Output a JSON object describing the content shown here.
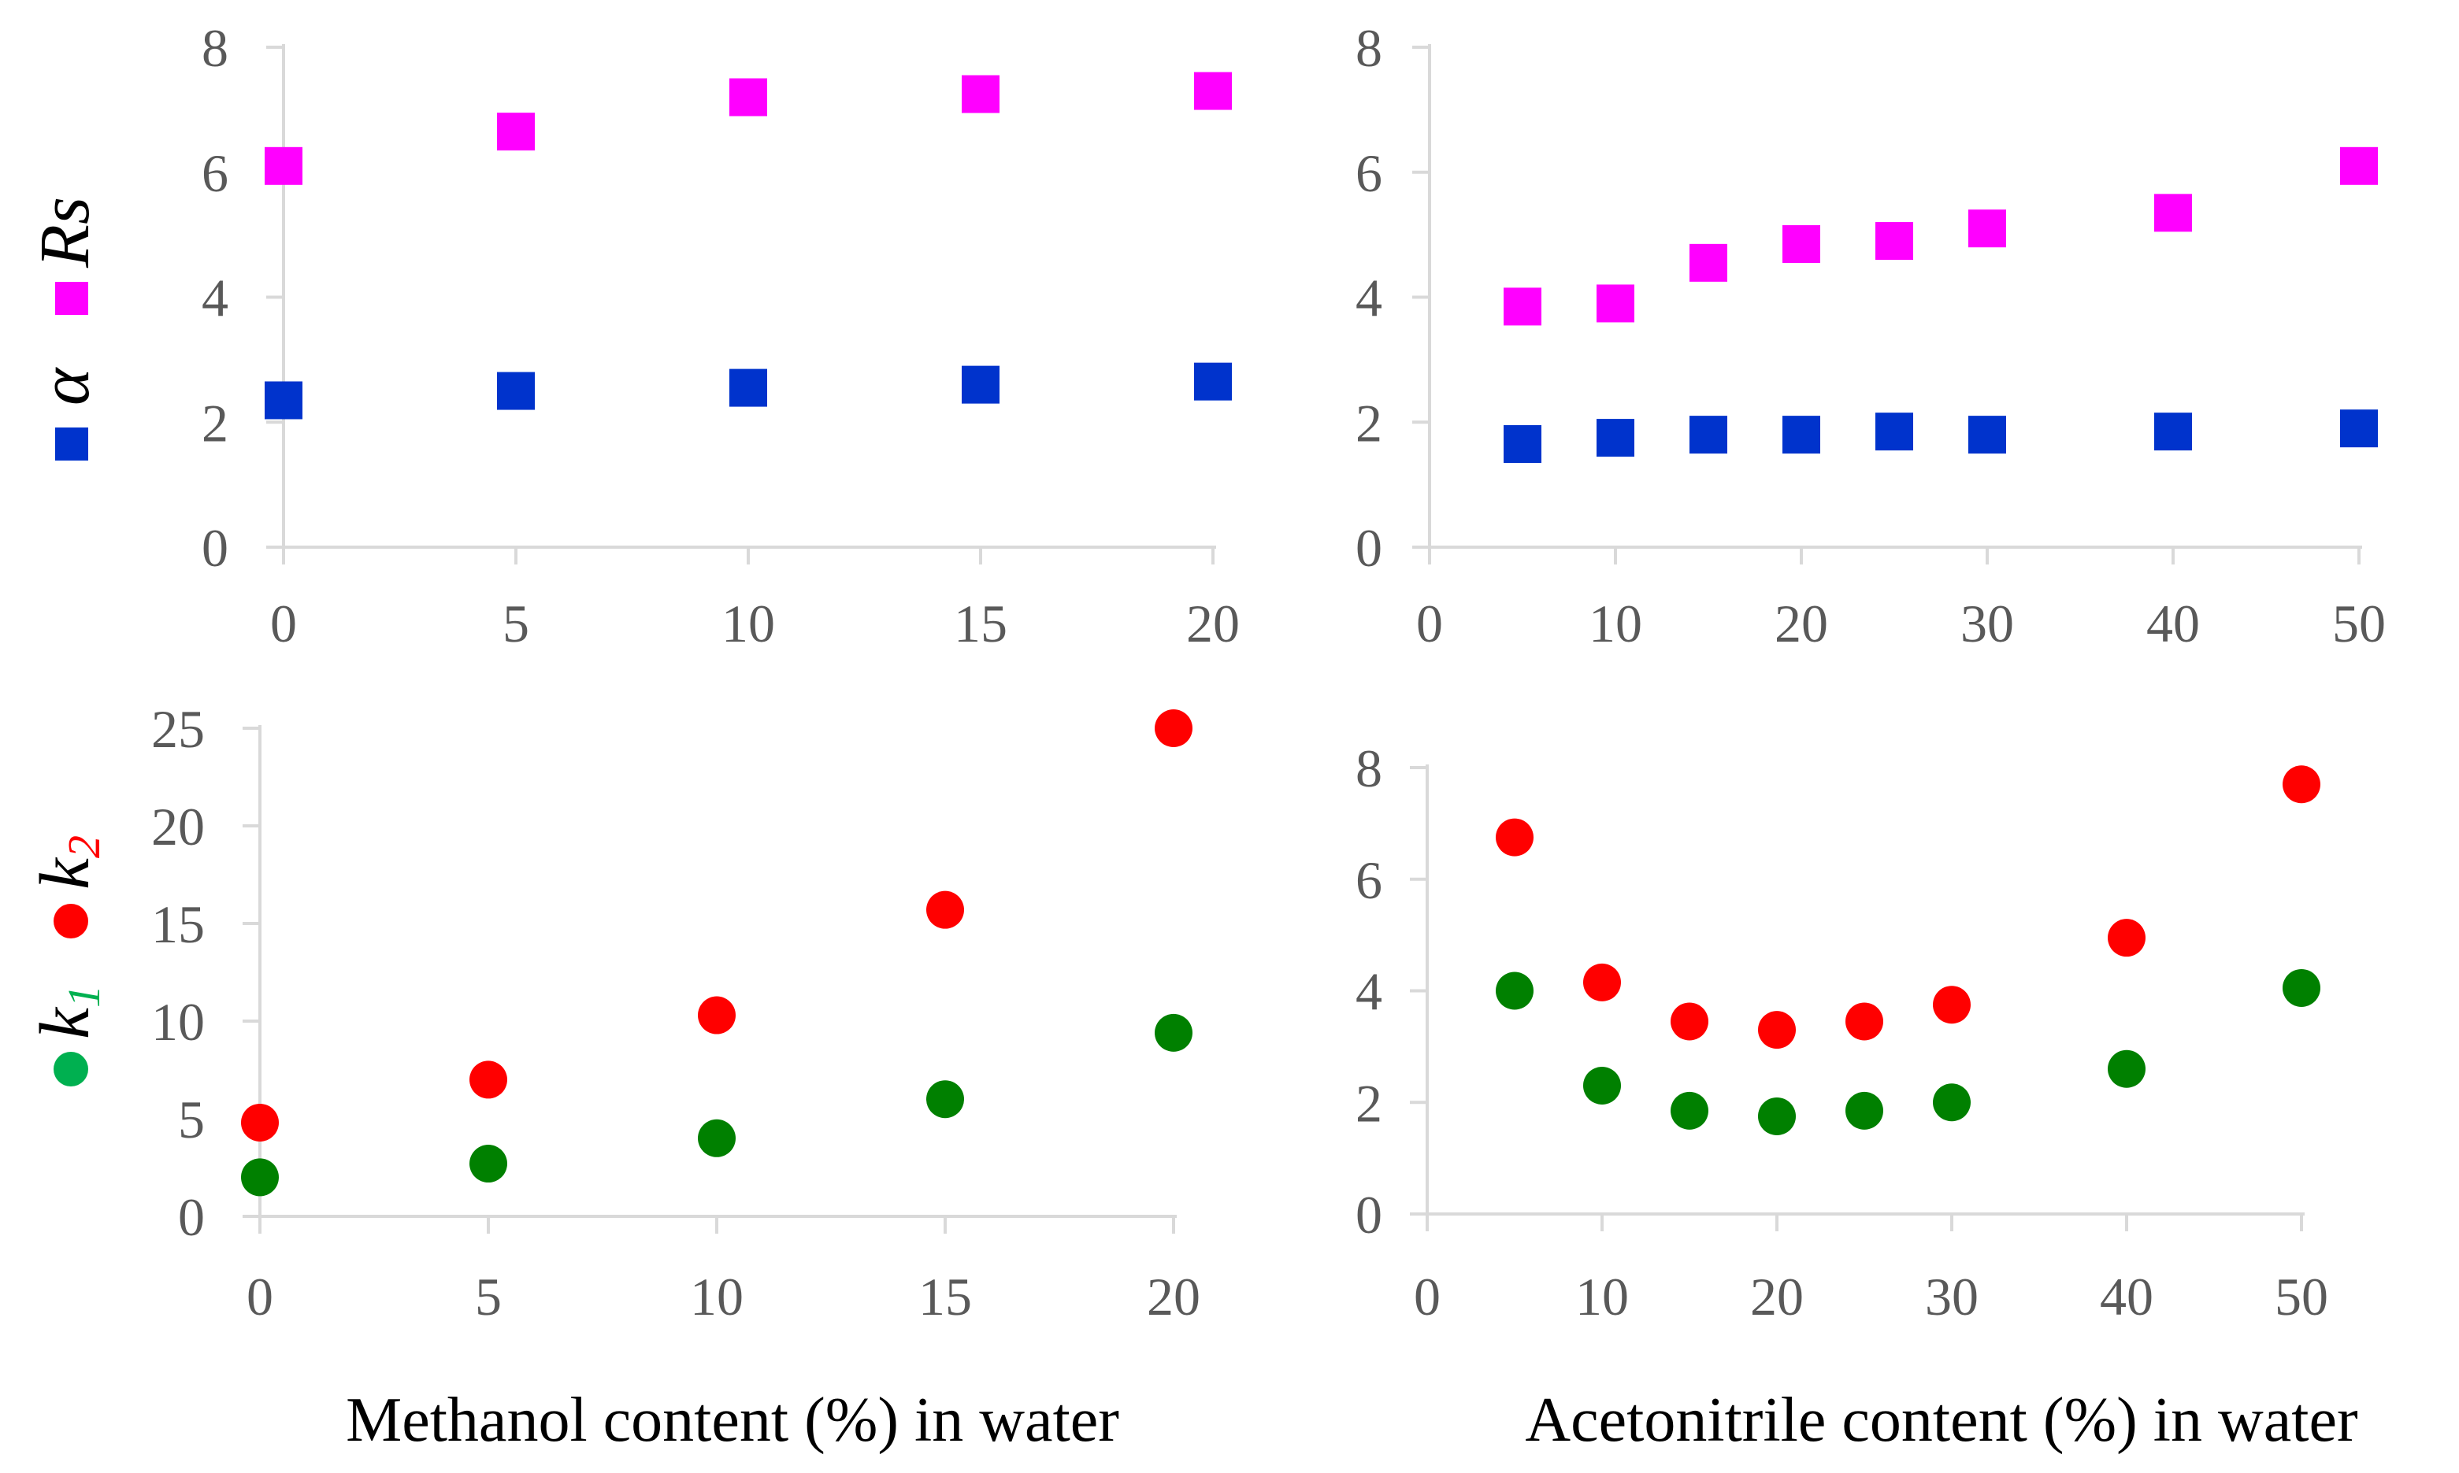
{
  "chart_data": [
    {
      "type": "scatter",
      "panel": "top-left",
      "xlim": [
        0,
        20
      ],
      "ylim": [
        0,
        8
      ],
      "xticks": [
        "0",
        "5",
        "10",
        "15",
        "20"
      ],
      "yticks": [
        "0",
        "2",
        "4",
        "6",
        "8"
      ],
      "series": [
        {
          "name": "Rs",
          "color": "#ff00ff",
          "marker": "square",
          "x": [
            0,
            5,
            10,
            15,
            20
          ],
          "y": [
            6.1,
            6.65,
            7.2,
            7.25,
            7.3
          ]
        },
        {
          "name": "α",
          "color": "#0033cc",
          "marker": "square",
          "x": [
            0,
            5,
            10,
            15,
            20
          ],
          "y": [
            2.35,
            2.5,
            2.55,
            2.6,
            2.65
          ]
        }
      ]
    },
    {
      "type": "scatter",
      "panel": "top-right",
      "xlim": [
        0,
        50
      ],
      "ylim": [
        0,
        8
      ],
      "xticks": [
        "0",
        "10",
        "20",
        "30",
        "40",
        "50"
      ],
      "yticks": [
        "0",
        "2",
        "4",
        "6",
        "8"
      ],
      "series": [
        {
          "name": "Rs",
          "color": "#ff00ff",
          "marker": "square",
          "x": [
            5,
            10,
            15,
            20,
            25,
            30,
            40,
            50
          ],
          "y": [
            3.85,
            3.9,
            4.55,
            4.85,
            4.9,
            5.1,
            5.35,
            6.1
          ]
        },
        {
          "name": "α",
          "color": "#0033cc",
          "marker": "square",
          "x": [
            5,
            10,
            15,
            20,
            25,
            30,
            40,
            50
          ],
          "y": [
            1.65,
            1.75,
            1.8,
            1.8,
            1.85,
            1.8,
            1.85,
            1.9
          ]
        }
      ]
    },
    {
      "type": "scatter",
      "panel": "bottom-left",
      "xlim": [
        0,
        20
      ],
      "ylim": [
        0,
        25
      ],
      "xticks": [
        "0",
        "5",
        "10",
        "15",
        "20"
      ],
      "yticks": [
        "0",
        "5",
        "10",
        "15",
        "20",
        "25"
      ],
      "series": [
        {
          "name": "k2",
          "color": "#ff0000",
          "marker": "circle",
          "x": [
            0,
            5,
            10,
            15,
            20
          ],
          "y": [
            4.8,
            7.0,
            10.3,
            15.7,
            25.0
          ]
        },
        {
          "name": "k1",
          "color": "#008000",
          "marker": "circle",
          "x": [
            0,
            5,
            10,
            15,
            20
          ],
          "y": [
            2.0,
            2.7,
            4.0,
            6.0,
            9.4
          ]
        }
      ]
    },
    {
      "type": "scatter",
      "panel": "bottom-right",
      "xlim": [
        0,
        50
      ],
      "ylim": [
        0,
        8
      ],
      "xticks": [
        "0",
        "10",
        "20",
        "30",
        "40",
        "50"
      ],
      "yticks": [
        "0",
        "2",
        "4",
        "6",
        "8"
      ],
      "series": [
        {
          "name": "k2",
          "color": "#ff0000",
          "marker": "circle",
          "x": [
            5,
            10,
            15,
            20,
            25,
            30,
            40,
            50
          ],
          "y": [
            6.75,
            4.15,
            3.45,
            3.3,
            3.45,
            3.75,
            4.95,
            7.7
          ]
        },
        {
          "name": "k1",
          "color": "#008000",
          "marker": "circle",
          "x": [
            5,
            10,
            15,
            20,
            25,
            30,
            40,
            50
          ],
          "y": [
            4.0,
            2.3,
            1.85,
            1.75,
            1.85,
            2.0,
            2.6,
            4.05
          ]
        }
      ]
    }
  ],
  "labels": {
    "top_y": {
      "alpha": "α",
      "rs": "Rs"
    },
    "bottom_y": {
      "k_letter": "k",
      "k1_sub": "1",
      "k2_sub": "2"
    },
    "x_methanol": "Methanol content (%) in water",
    "x_acetonitrile": "Acetonitrile content (%) in water"
  },
  "colors": {
    "rs": "#ff00ff",
    "alpha": "#0033cc",
    "k2": "#ff0000",
    "k1": "#008000",
    "k1_label": "#00b050",
    "k1_legend_dot": "#00b050"
  }
}
